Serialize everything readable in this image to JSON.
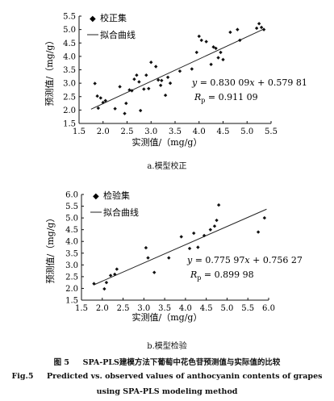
{
  "chart_data": [
    {
      "type": "scatter",
      "xlabel": "实测值/（mg/g）",
      "ylabel": "预测值/（mg/g）",
      "xlim": [
        1.5,
        5.5
      ],
      "ylim": [
        1.5,
        5.5
      ],
      "xticks": [
        "1.5",
        "2.0",
        "2.5",
        "3.0",
        "3.5",
        "4.0",
        "4.5",
        "5.0",
        "5.5"
      ],
      "yticks": [
        "1.5",
        "2.0",
        "2.5",
        "3.0",
        "3.5",
        "4.0",
        "4.5",
        "5.0",
        "5.5"
      ],
      "legend_position": "top-left",
      "legend": {
        "points": "校正集",
        "line": "拟合曲线"
      },
      "equation": {
        "y": "y",
        "eq": " = 0.830 09",
        "x": "x",
        "rest": " + 0.579 81"
      },
      "r": {
        "R": "R",
        "sub": "p",
        "value": " = 0.911 09"
      },
      "fit": {
        "slope": 0.83009,
        "intercept": 0.57981,
        "x_range": [
          1.75,
          5.35
        ]
      },
      "points": [
        [
          1.83,
          2.99
        ],
        [
          1.88,
          2.52
        ],
        [
          1.9,
          2.07
        ],
        [
          1.95,
          2.45
        ],
        [
          2.0,
          2.28
        ],
        [
          2.05,
          2.35
        ],
        [
          2.25,
          2.05
        ],
        [
          2.35,
          2.87
        ],
        [
          2.45,
          1.87
        ],
        [
          2.48,
          2.25
        ],
        [
          2.55,
          2.75
        ],
        [
          2.6,
          2.72
        ],
        [
          2.65,
          3.15
        ],
        [
          2.7,
          3.3
        ],
        [
          2.75,
          3.05
        ],
        [
          2.78,
          1.98
        ],
        [
          2.85,
          2.78
        ],
        [
          2.9,
          3.3
        ],
        [
          2.95,
          2.8
        ],
        [
          3.0,
          3.78
        ],
        [
          3.1,
          3.62
        ],
        [
          3.15,
          3.12
        ],
        [
          3.2,
          2.92
        ],
        [
          3.22,
          3.1
        ],
        [
          3.3,
          2.55
        ],
        [
          3.35,
          3.22
        ],
        [
          3.4,
          3.0
        ],
        [
          3.6,
          3.45
        ],
        [
          3.85,
          3.53
        ],
        [
          3.95,
          4.15
        ],
        [
          4.0,
          4.75
        ],
        [
          4.05,
          4.6
        ],
        [
          4.15,
          4.55
        ],
        [
          4.25,
          3.7
        ],
        [
          4.3,
          4.35
        ],
        [
          4.35,
          4.3
        ],
        [
          4.4,
          3.95
        ],
        [
          4.45,
          4.15
        ],
        [
          4.5,
          3.88
        ],
        [
          4.65,
          4.9
        ],
        [
          4.8,
          5.0
        ],
        [
          4.85,
          4.6
        ],
        [
          5.2,
          5.05
        ],
        [
          5.25,
          5.22
        ],
        [
          5.3,
          5.08
        ],
        [
          5.35,
          5.0
        ]
      ]
    },
    {
      "type": "scatter",
      "xlabel": "实测值/（mg/g）",
      "ylabel": "预测值/（mg/g）",
      "xlim": [
        1.5,
        6.0
      ],
      "ylim": [
        1.5,
        6.0
      ],
      "xticks": [
        "1.5",
        "2.0",
        "2.5",
        "3.0",
        "3.5",
        "4.0",
        "4.5",
        "5.0",
        "5.5",
        "6.0"
      ],
      "yticks": [
        "1.5",
        "2.0",
        "2.5",
        "3.0",
        "3.5",
        "4.0",
        "4.5",
        "5.0",
        "5.5",
        "6.0"
      ],
      "legend_position": "top-left",
      "legend": {
        "points": "检验集",
        "line": "拟合曲线"
      },
      "equation": {
        "y": "y",
        "eq": " = 0.775 97",
        "x": "x",
        "rest": " + 0.756 27"
      },
      "r": {
        "R": "R",
        "sub": "p",
        "value": " = 0.899 98"
      },
      "fit": {
        "slope": 0.77597,
        "intercept": 0.75627,
        "x_range": [
          1.8,
          5.95
        ]
      },
      "points": [
        [
          1.8,
          2.2
        ],
        [
          2.05,
          1.98
        ],
        [
          2.1,
          2.25
        ],
        [
          2.2,
          2.55
        ],
        [
          2.3,
          2.6
        ],
        [
          2.35,
          2.82
        ],
        [
          3.05,
          3.73
        ],
        [
          3.1,
          3.3
        ],
        [
          3.25,
          2.68
        ],
        [
          3.6,
          3.3
        ],
        [
          3.9,
          4.2
        ],
        [
          4.1,
          3.7
        ],
        [
          4.2,
          4.35
        ],
        [
          4.3,
          3.75
        ],
        [
          4.45,
          4.25
        ],
        [
          4.6,
          4.5
        ],
        [
          4.7,
          4.65
        ],
        [
          4.75,
          4.9
        ],
        [
          4.8,
          5.55
        ],
        [
          5.75,
          4.4
        ],
        [
          5.9,
          5.0
        ]
      ]
    }
  ],
  "captions": {
    "sub_a": "a.模型校正",
    "sub_b": "b.模型检验",
    "fig_cn_num": "图 5",
    "fig_cn_text": "SPA-PLS建模方法下葡萄中花色苷预测值与实际值的比较",
    "fig_en_num": "Fig.5",
    "fig_en_text1": "Predicted vs. observed values of anthocyanin contents of grapes",
    "fig_en_text2": "using SPA-PLS modeling method"
  }
}
